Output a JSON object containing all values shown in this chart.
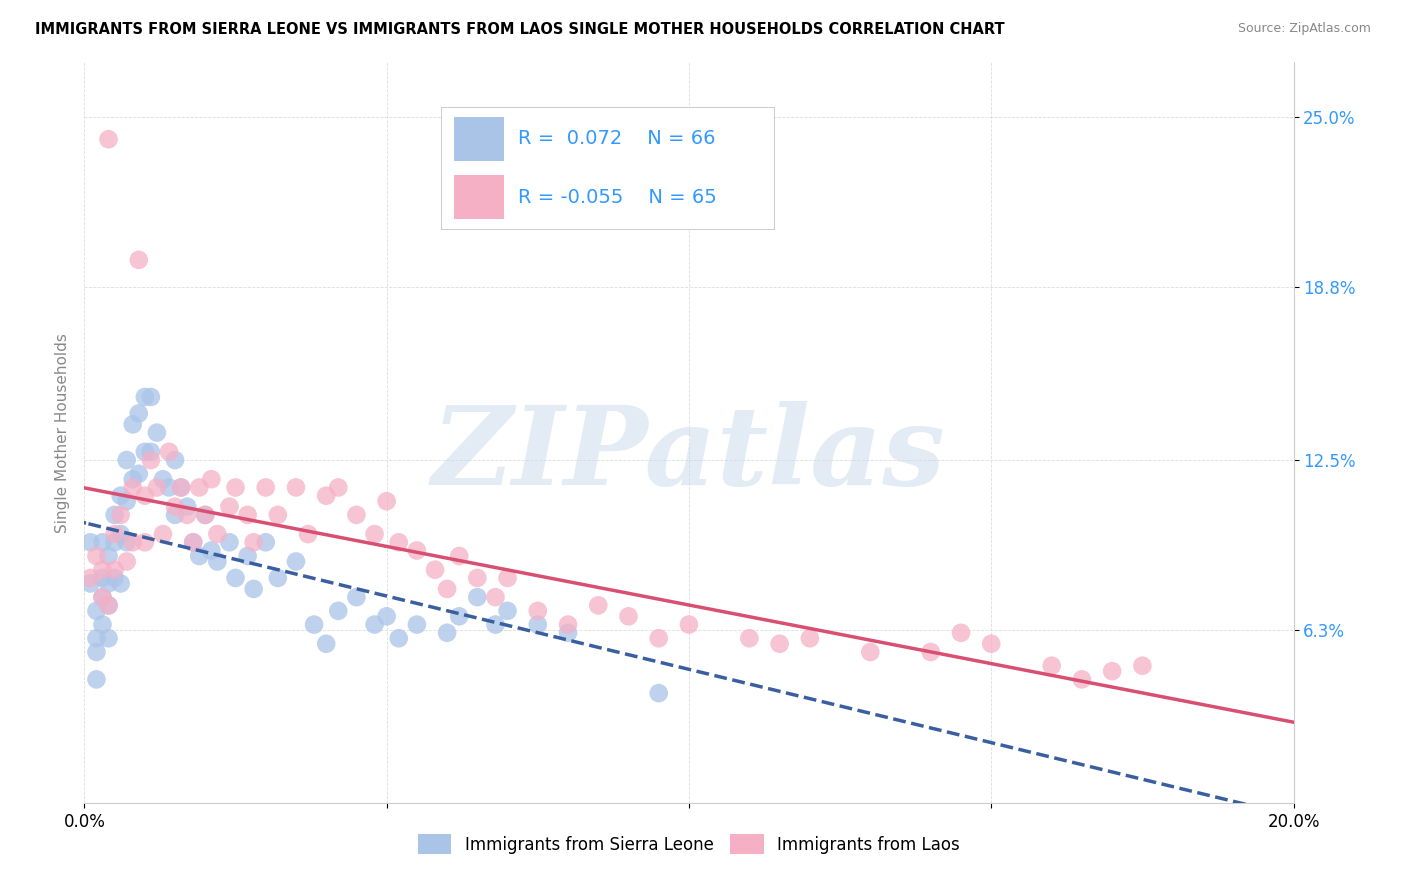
{
  "title": "IMMIGRANTS FROM SIERRA LEONE VS IMMIGRANTS FROM LAOS SINGLE MOTHER HOUSEHOLDS CORRELATION CHART",
  "source": "Source: ZipAtlas.com",
  "ylabel": "Single Mother Households",
  "xlim": [
    0.0,
    0.2
  ],
  "ylim": [
    0.0,
    0.27
  ],
  "ytick_positions": [
    0.063,
    0.125,
    0.188,
    0.25
  ],
  "ytick_labels": [
    "6.3%",
    "12.5%",
    "18.8%",
    "25.0%"
  ],
  "grid_color": "#dddddd",
  "background_color": "#ffffff",
  "sierra_leone_color": "#aac4e8",
  "laos_color": "#f5b0c5",
  "sierra_leone_line_color": "#3a5fa0",
  "laos_line_color": "#d94f72",
  "sierra_leone_name": "Immigrants from Sierra Leone",
  "laos_name": "Immigrants from Laos",
  "R_sl": 0.072,
  "N_sl": 66,
  "R_laos": -0.055,
  "N_laos": 65,
  "legend_text_color": "#3399ff",
  "watermark": "ZIPatlas",
  "sierra_leone_x": [
    0.001,
    0.001,
    0.002,
    0.002,
    0.002,
    0.002,
    0.003,
    0.003,
    0.003,
    0.003,
    0.004,
    0.004,
    0.004,
    0.004,
    0.005,
    0.005,
    0.005,
    0.006,
    0.006,
    0.006,
    0.007,
    0.007,
    0.007,
    0.008,
    0.008,
    0.009,
    0.009,
    0.01,
    0.01,
    0.011,
    0.011,
    0.012,
    0.013,
    0.014,
    0.015,
    0.015,
    0.016,
    0.017,
    0.018,
    0.019,
    0.02,
    0.021,
    0.022,
    0.024,
    0.025,
    0.027,
    0.028,
    0.03,
    0.032,
    0.035,
    0.038,
    0.04,
    0.042,
    0.045,
    0.048,
    0.05,
    0.052,
    0.055,
    0.06,
    0.062,
    0.065,
    0.068,
    0.07,
    0.075,
    0.08,
    0.095
  ],
  "sierra_leone_y": [
    0.095,
    0.08,
    0.07,
    0.06,
    0.055,
    0.045,
    0.095,
    0.082,
    0.075,
    0.065,
    0.09,
    0.08,
    0.072,
    0.06,
    0.105,
    0.095,
    0.082,
    0.112,
    0.098,
    0.08,
    0.125,
    0.11,
    0.095,
    0.138,
    0.118,
    0.142,
    0.12,
    0.148,
    0.128,
    0.148,
    0.128,
    0.135,
    0.118,
    0.115,
    0.125,
    0.105,
    0.115,
    0.108,
    0.095,
    0.09,
    0.105,
    0.092,
    0.088,
    0.095,
    0.082,
    0.09,
    0.078,
    0.095,
    0.082,
    0.088,
    0.065,
    0.058,
    0.07,
    0.075,
    0.065,
    0.068,
    0.06,
    0.065,
    0.062,
    0.068,
    0.075,
    0.065,
    0.07,
    0.065,
    0.062,
    0.04
  ],
  "laos_x": [
    0.001,
    0.002,
    0.003,
    0.003,
    0.004,
    0.004,
    0.005,
    0.005,
    0.006,
    0.007,
    0.008,
    0.008,
    0.009,
    0.01,
    0.01,
    0.011,
    0.012,
    0.013,
    0.014,
    0.015,
    0.016,
    0.017,
    0.018,
    0.019,
    0.02,
    0.021,
    0.022,
    0.024,
    0.025,
    0.027,
    0.028,
    0.03,
    0.032,
    0.035,
    0.037,
    0.04,
    0.042,
    0.045,
    0.048,
    0.05,
    0.052,
    0.055,
    0.058,
    0.06,
    0.062,
    0.065,
    0.068,
    0.07,
    0.075,
    0.08,
    0.085,
    0.09,
    0.095,
    0.1,
    0.11,
    0.115,
    0.12,
    0.13,
    0.14,
    0.145,
    0.15,
    0.16,
    0.165,
    0.17,
    0.175
  ],
  "laos_y": [
    0.082,
    0.09,
    0.085,
    0.075,
    0.242,
    0.072,
    0.098,
    0.085,
    0.105,
    0.088,
    0.115,
    0.095,
    0.198,
    0.112,
    0.095,
    0.125,
    0.115,
    0.098,
    0.128,
    0.108,
    0.115,
    0.105,
    0.095,
    0.115,
    0.105,
    0.118,
    0.098,
    0.108,
    0.115,
    0.105,
    0.095,
    0.115,
    0.105,
    0.115,
    0.098,
    0.112,
    0.115,
    0.105,
    0.098,
    0.11,
    0.095,
    0.092,
    0.085,
    0.078,
    0.09,
    0.082,
    0.075,
    0.082,
    0.07,
    0.065,
    0.072,
    0.068,
    0.06,
    0.065,
    0.06,
    0.058,
    0.06,
    0.055,
    0.055,
    0.062,
    0.058,
    0.05,
    0.045,
    0.048,
    0.05
  ]
}
